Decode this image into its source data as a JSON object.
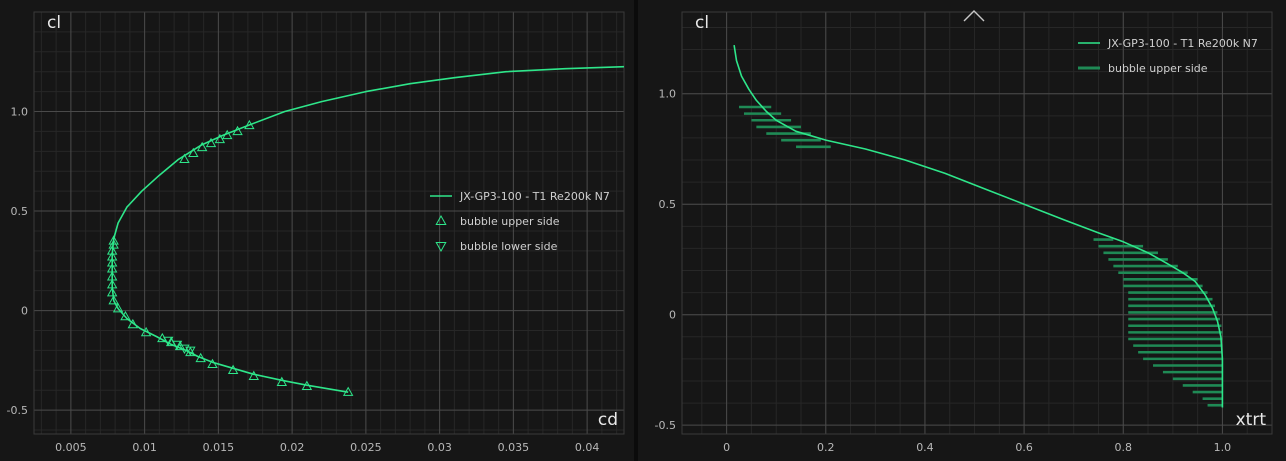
{
  "colors": {
    "background": "#161616",
    "grid_major": "#4a4a4a",
    "grid_minor": "#272727",
    "polar_line": "#2ee68a",
    "bubble_marker": "#2ee68a",
    "bubble_bar": "#1f8a55"
  },
  "icons": {
    "collapse": "chevron-up-icon"
  },
  "chart_data": [
    {
      "type": "line",
      "xlabel": "cd",
      "ylabel": "cl",
      "xlim": [
        0.0025,
        0.0425
      ],
      "ylim": [
        -0.62,
        1.5
      ],
      "xticks": [
        0.005,
        0.01,
        0.015,
        0.02,
        0.025,
        0.03,
        0.035,
        0.04
      ],
      "xtick_labels": [
        "0.005",
        "0.01",
        "0.015",
        "0.02",
        "0.025",
        "0.03",
        "0.035",
        "0.04"
      ],
      "yticks": [
        -0.5,
        0,
        0.5,
        1.0
      ],
      "ytick_labels": [
        "-0.5",
        "0",
        "0.5",
        "1.0"
      ],
      "grid": true,
      "legend_position": "center-right",
      "series": [
        {
          "name": "JX-GP3-100 - T1 Re200k N7",
          "kind": "line",
          "x": [
            0.0238,
            0.021,
            0.0193,
            0.0174,
            0.016,
            0.0146,
            0.0136,
            0.0128,
            0.0118,
            0.0108,
            0.0097,
            0.0088,
            0.0082,
            0.0079,
            0.0078,
            0.0078,
            0.0078,
            0.0079,
            0.0082,
            0.0088,
            0.0098,
            0.011,
            0.0123,
            0.0138,
            0.0153,
            0.017,
            0.0195,
            0.022,
            0.025,
            0.028,
            0.031,
            0.0345,
            0.0385,
            0.0425
          ],
          "y": [
            -0.41,
            -0.375,
            -0.35,
            -0.32,
            -0.29,
            -0.26,
            -0.23,
            -0.2,
            -0.17,
            -0.13,
            -0.09,
            -0.04,
            0.01,
            0.05,
            0.12,
            0.2,
            0.28,
            0.36,
            0.44,
            0.52,
            0.6,
            0.68,
            0.76,
            0.83,
            0.88,
            0.93,
            1.0,
            1.05,
            1.1,
            1.14,
            1.17,
            1.2,
            1.215,
            1.225
          ]
        },
        {
          "name": "bubble upper side",
          "kind": "triangle-up",
          "x": [
            0.0238,
            0.021,
            0.0193,
            0.0174,
            0.016,
            0.0146,
            0.0138,
            0.0131,
            0.0124,
            0.0118,
            0.0112,
            0.0101,
            0.0092,
            0.0087,
            0.0082,
            0.0079,
            0.0078,
            0.0078,
            0.0078,
            0.0078,
            0.0078,
            0.0078,
            0.0078,
            0.0079,
            0.0079,
            0.0127,
            0.0133,
            0.0139,
            0.0145,
            0.0151,
            0.0156,
            0.0163,
            0.0171
          ],
          "y": [
            -0.41,
            -0.38,
            -0.36,
            -0.33,
            -0.3,
            -0.27,
            -0.24,
            -0.21,
            -0.18,
            -0.16,
            -0.14,
            -0.11,
            -0.07,
            -0.03,
            0.01,
            0.05,
            0.09,
            0.13,
            0.17,
            0.21,
            0.24,
            0.27,
            0.3,
            0.33,
            0.35,
            0.76,
            0.79,
            0.82,
            0.84,
            0.86,
            0.88,
            0.9,
            0.93
          ]
        },
        {
          "name": "bubble lower side",
          "kind": "triangle-down",
          "x": [
            0.0116,
            0.0122,
            0.0127,
            0.0131
          ],
          "y": [
            -0.15,
            -0.17,
            -0.19,
            -0.2
          ]
        }
      ]
    },
    {
      "type": "line",
      "xlabel": "xtrt",
      "ylabel": "cl",
      "xlim": [
        -0.09,
        1.1
      ],
      "ylim": [
        -0.54,
        1.37
      ],
      "xticks": [
        0,
        0.2,
        0.4,
        0.6,
        0.8,
        1.0
      ],
      "xtick_labels": [
        "0",
        "0.2",
        "0.4",
        "0.6",
        "0.8",
        "1.0"
      ],
      "yticks": [
        -0.5,
        0,
        0.5,
        1.0
      ],
      "ytick_labels": [
        "-0.5",
        "0",
        "0.5",
        "1.0"
      ],
      "grid": true,
      "legend_position": "top-right",
      "series": [
        {
          "name": "JX-GP3-100 - T1 Re200k N7",
          "kind": "line",
          "x": [
            0.015,
            0.02,
            0.03,
            0.045,
            0.06,
            0.08,
            0.1,
            0.14,
            0.2,
            0.28,
            0.36,
            0.44,
            0.52,
            0.6,
            0.68,
            0.75,
            0.8,
            0.85,
            0.89,
            0.92,
            0.945,
            0.965,
            0.98,
            0.99,
            0.997,
            1.0,
            1.0,
            1.0,
            1.0
          ],
          "y": [
            1.22,
            1.15,
            1.08,
            1.02,
            0.97,
            0.92,
            0.88,
            0.83,
            0.79,
            0.75,
            0.7,
            0.64,
            0.57,
            0.5,
            0.43,
            0.37,
            0.33,
            0.28,
            0.23,
            0.19,
            0.15,
            0.09,
            0.03,
            -0.03,
            -0.1,
            -0.2,
            -0.3,
            -0.38,
            -0.42
          ]
        },
        {
          "name": "bubble upper side",
          "kind": "hbar",
          "bars": [
            {
              "y": 0.94,
              "x0": 0.025,
              "x1": 0.09
            },
            {
              "y": 0.91,
              "x0": 0.035,
              "x1": 0.11
            },
            {
              "y": 0.88,
              "x0": 0.05,
              "x1": 0.13
            },
            {
              "y": 0.85,
              "x0": 0.06,
              "x1": 0.15
            },
            {
              "y": 0.82,
              "x0": 0.08,
              "x1": 0.17
            },
            {
              "y": 0.79,
              "x0": 0.11,
              "x1": 0.19
            },
            {
              "y": 0.76,
              "x0": 0.14,
              "x1": 0.21
            },
            {
              "y": 0.34,
              "x0": 0.74,
              "x1": 0.78
            },
            {
              "y": 0.31,
              "x0": 0.75,
              "x1": 0.84
            },
            {
              "y": 0.28,
              "x0": 0.76,
              "x1": 0.87
            },
            {
              "y": 0.25,
              "x0": 0.77,
              "x1": 0.89
            },
            {
              "y": 0.22,
              "x0": 0.78,
              "x1": 0.91
            },
            {
              "y": 0.19,
              "x0": 0.79,
              "x1": 0.93
            },
            {
              "y": 0.16,
              "x0": 0.8,
              "x1": 0.95
            },
            {
              "y": 0.13,
              "x0": 0.8,
              "x1": 0.96
            },
            {
              "y": 0.1,
              "x0": 0.81,
              "x1": 0.97
            },
            {
              "y": 0.07,
              "x0": 0.81,
              "x1": 0.98
            },
            {
              "y": 0.04,
              "x0": 0.81,
              "x1": 0.985
            },
            {
              "y": 0.01,
              "x0": 0.81,
              "x1": 0.99
            },
            {
              "y": -0.02,
              "x0": 0.81,
              "x1": 0.995
            },
            {
              "y": -0.05,
              "x0": 0.81,
              "x1": 0.998
            },
            {
              "y": -0.08,
              "x0": 0.81,
              "x1": 1.0
            },
            {
              "y": -0.11,
              "x0": 0.81,
              "x1": 1.0
            },
            {
              "y": -0.14,
              "x0": 0.82,
              "x1": 1.0
            },
            {
              "y": -0.17,
              "x0": 0.83,
              "x1": 1.0
            },
            {
              "y": -0.2,
              "x0": 0.84,
              "x1": 1.0
            },
            {
              "y": -0.23,
              "x0": 0.86,
              "x1": 1.0
            },
            {
              "y": -0.26,
              "x0": 0.88,
              "x1": 1.0
            },
            {
              "y": -0.29,
              "x0": 0.9,
              "x1": 1.0
            },
            {
              "y": -0.32,
              "x0": 0.92,
              "x1": 1.0
            },
            {
              "y": -0.35,
              "x0": 0.94,
              "x1": 1.0
            },
            {
              "y": -0.38,
              "x0": 0.96,
              "x1": 1.0
            },
            {
              "y": -0.41,
              "x0": 0.97,
              "x1": 1.0
            }
          ]
        }
      ]
    }
  ]
}
